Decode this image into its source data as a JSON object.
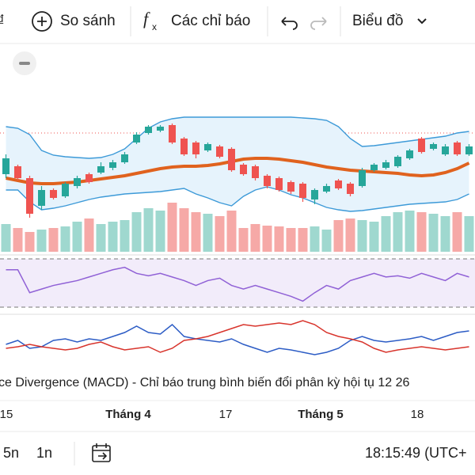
{
  "toolbar": {
    "compare": "So sánh",
    "indicators": "Các chỉ báo",
    "chart_type": "Biểu đồ"
  },
  "chart": {
    "ylim": [
      20,
      155
    ],
    "candles": [
      [
        80,
        105,
        75,
        100
      ],
      [
        90,
        92,
        72,
        75
      ],
      [
        75,
        78,
        25,
        30
      ],
      [
        40,
        65,
        35,
        60
      ],
      [
        60,
        62,
        48,
        50
      ],
      [
        52,
        70,
        50,
        68
      ],
      [
        65,
        78,
        62,
        75
      ],
      [
        80,
        82,
        68,
        70
      ],
      [
        82,
        95,
        80,
        90
      ],
      [
        88,
        98,
        85,
        95
      ],
      [
        95,
        108,
        93,
        105
      ],
      [
        120,
        133,
        118,
        130
      ],
      [
        132,
        142,
        130,
        140
      ],
      [
        135,
        142,
        133,
        140
      ],
      [
        142,
        144,
        118,
        120
      ],
      [
        125,
        127,
        103,
        105
      ],
      [
        120,
        122,
        100,
        105
      ],
      [
        110,
        120,
        108,
        118
      ],
      [
        115,
        117,
        100,
        102
      ],
      [
        112,
        114,
        83,
        85
      ],
      [
        92,
        94,
        78,
        80
      ],
      [
        90,
        92,
        72,
        75
      ],
      [
        78,
        80,
        62,
        65
      ],
      [
        75,
        77,
        58,
        60
      ],
      [
        70,
        72,
        55,
        58
      ],
      [
        68,
        70,
        45,
        50
      ],
      [
        48,
        62,
        42,
        60
      ],
      [
        58,
        68,
        56,
        65
      ],
      [
        72,
        74,
        60,
        62
      ],
      [
        68,
        70,
        52,
        55
      ],
      [
        65,
        88,
        63,
        85
      ],
      [
        85,
        94,
        83,
        92
      ],
      [
        88,
        98,
        86,
        95
      ],
      [
        90,
        104,
        88,
        102
      ],
      [
        100,
        112,
        98,
        110
      ],
      [
        125,
        127,
        106,
        108
      ],
      [
        112,
        120,
        110,
        118
      ],
      [
        105,
        118,
        103,
        115
      ],
      [
        120,
        122,
        103,
        105
      ],
      [
        105,
        118,
        103,
        115
      ]
    ],
    "bb_upper": [
      140,
      138,
      130,
      110,
      104,
      102,
      101,
      100,
      101,
      105,
      112,
      125,
      138,
      146,
      150,
      152,
      152,
      152,
      152,
      152,
      152,
      152,
      152,
      152,
      152,
      151,
      150,
      148,
      140,
      125,
      115,
      116,
      118,
      120,
      122,
      124,
      126,
      128,
      132,
      134
    ],
    "bb_mid": [
      75,
      72,
      69,
      68,
      68,
      69,
      70,
      72,
      74,
      76,
      78,
      81,
      84,
      87,
      89,
      90,
      90,
      91,
      93,
      96,
      99,
      100,
      100,
      99,
      97,
      95,
      92,
      89,
      87,
      85,
      84,
      83,
      82,
      81,
      79,
      78,
      79,
      82,
      87,
      94
    ],
    "bb_lower": [
      60,
      60,
      45,
      35,
      37,
      40,
      44,
      48,
      51,
      53,
      55,
      56,
      57,
      58,
      60,
      62,
      55,
      50,
      44,
      40,
      52,
      60,
      64,
      60,
      54,
      50,
      44,
      38,
      35,
      33,
      34,
      36,
      38,
      40,
      42,
      43,
      44,
      45,
      48,
      55
    ],
    "volume_ylim": [
      0,
      100
    ],
    "volumes": [
      35,
      30,
      25,
      28,
      30,
      32,
      38,
      42,
      35,
      38,
      40,
      50,
      55,
      52,
      62,
      55,
      50,
      48,
      45,
      52,
      30,
      35,
      33,
      32,
      30,
      30,
      32,
      28,
      40,
      42,
      40,
      38,
      45,
      50,
      52,
      50,
      48,
      45,
      50,
      45
    ],
    "rsi_ylim": [
      30,
      70
    ],
    "rsi": [
      61,
      61,
      42,
      45,
      48,
      50,
      52,
      55,
      58,
      61,
      63,
      58,
      56,
      58,
      55,
      52,
      48,
      52,
      54,
      48,
      45,
      48,
      45,
      42,
      39,
      35,
      42,
      48,
      45,
      52,
      55,
      58,
      55,
      56,
      54,
      58,
      55,
      52,
      58,
      55
    ],
    "macd_ylim": [
      -3,
      3
    ],
    "macd": [
      -0.5,
      0,
      -1,
      -0.8,
      0,
      0.2,
      -0.2,
      0.2,
      0,
      0.5,
      1,
      1.8,
      1,
      0.8,
      2,
      0.5,
      0.2,
      0,
      -0.2,
      0.2,
      -0.5,
      -1,
      -1.5,
      -1,
      -1.2,
      -1.5,
      -1.8,
      -1.5,
      -1,
      0,
      0.5,
      0,
      -0.2,
      0,
      0.2,
      0.5,
      0,
      0.5,
      1,
      1.2
    ],
    "macd_signal": [
      -1,
      -0.8,
      -0.5,
      -0.8,
      -1,
      -1.2,
      -1,
      -0.5,
      -0.2,
      -0.8,
      -1.2,
      -1,
      -0.8,
      -1.5,
      -1,
      0,
      0.2,
      0.5,
      1,
      1.5,
      2,
      1.8,
      2,
      2.2,
      2,
      2.5,
      2,
      1,
      0.5,
      0.2,
      -0.2,
      -1,
      -1.5,
      -1.2,
      -1,
      -0.8,
      -1,
      -1.2,
      -1,
      -0.8
    ],
    "macd_label": "ce Divergence (MACD) - Chỉ báo trung bình biến đổi phân kỳ hội tụ 12 26",
    "x_labels": [
      "15",
      "Tháng 4",
      "17",
      "Tháng 5",
      "18"
    ]
  },
  "bottom": {
    "range_5d": "5n",
    "range_1d": "1n",
    "time": "18:15:49 (UTC+"
  }
}
